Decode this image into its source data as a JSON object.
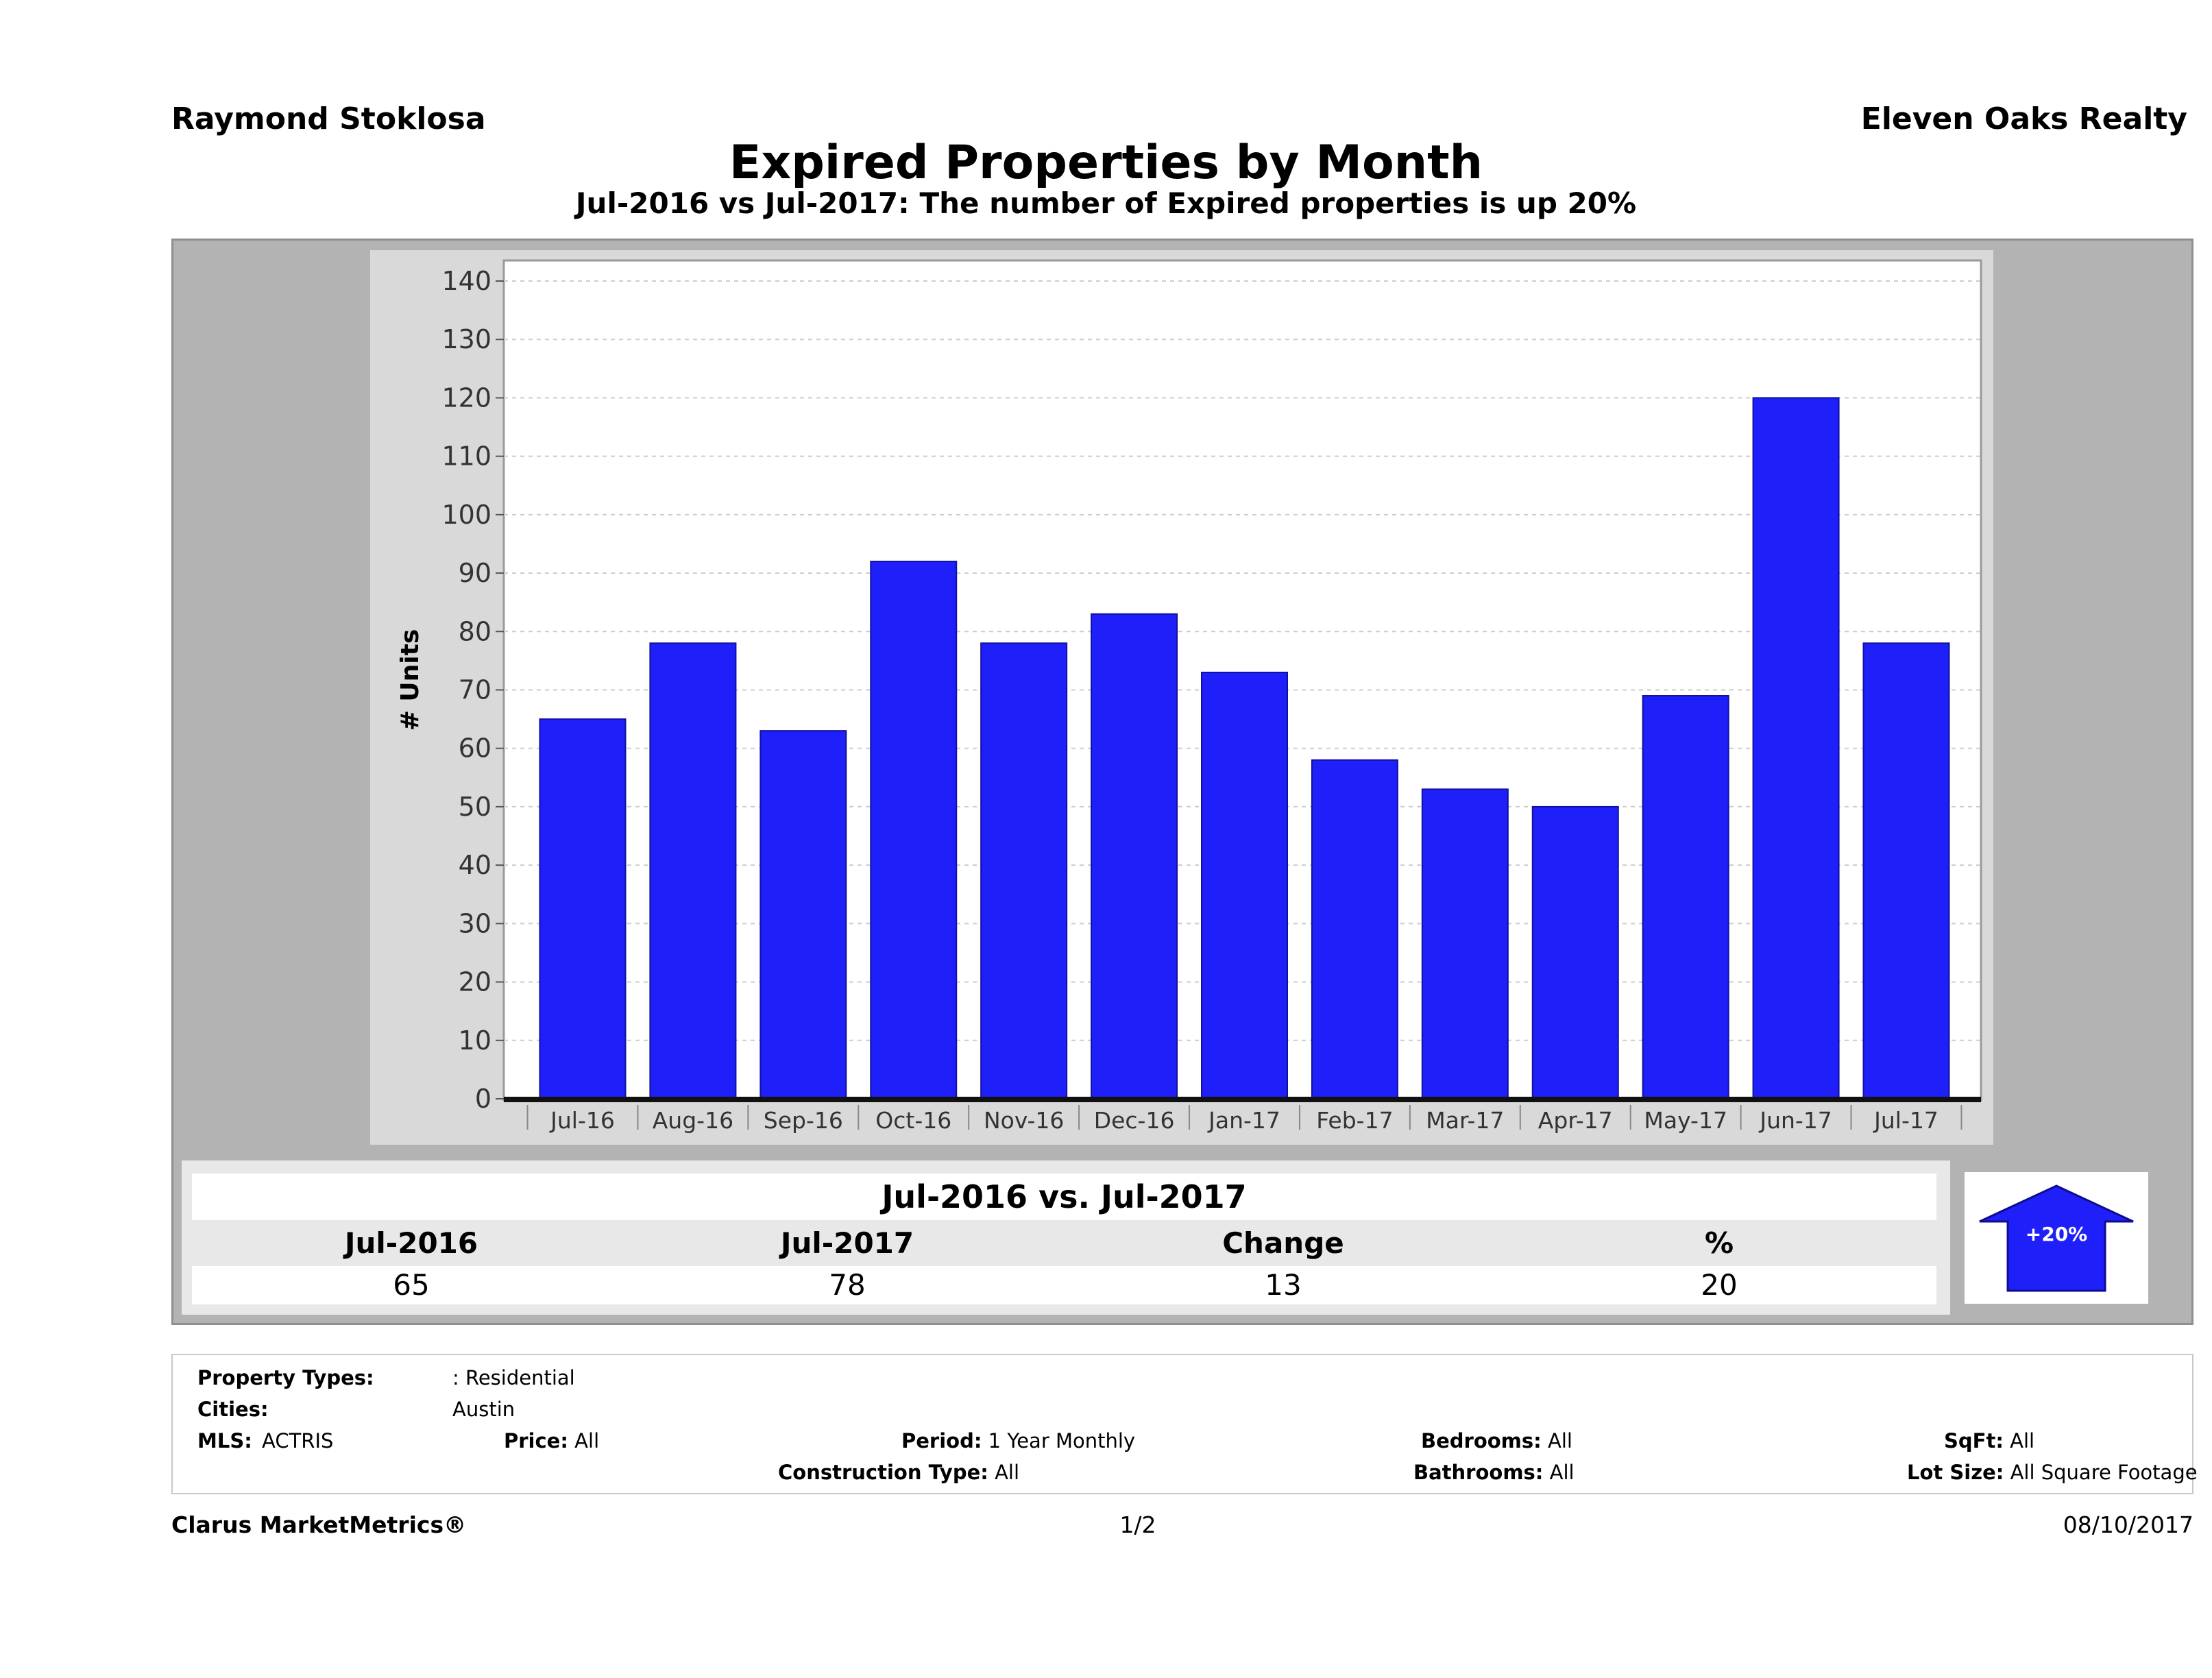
{
  "header": {
    "agent_name": "Raymond Stoklosa",
    "company": "Eleven Oaks Realty",
    "title": "Expired Properties by Month",
    "subtitle": "Jul-2016 vs Jul-2017: The number of Expired  properties is up 20%"
  },
  "colors": {
    "bar": "#1f1ffa",
    "panel": "#b3b3b3",
    "plot_panel": "#d9d9d9",
    "grid": "#cccccc"
  },
  "chart_data": {
    "type": "bar",
    "categories": [
      "Jul-16",
      "Aug-16",
      "Sep-16",
      "Oct-16",
      "Nov-16",
      "Dec-16",
      "Jan-17",
      "Feb-17",
      "Mar-17",
      "Apr-17",
      "May-17",
      "Jun-17",
      "Jul-17"
    ],
    "values": [
      65,
      78,
      63,
      92,
      78,
      83,
      73,
      58,
      53,
      50,
      69,
      120,
      78
    ],
    "title": "",
    "xlabel": "",
    "ylabel": "# Units",
    "ylim": [
      0,
      140
    ],
    "yticks": [
      0,
      10,
      20,
      30,
      40,
      50,
      60,
      70,
      80,
      90,
      100,
      110,
      120,
      130,
      140
    ],
    "grid": true,
    "legend": "none"
  },
  "comparison": {
    "title": "Jul-2016 vs. Jul-2017",
    "headers": [
      "Jul-2016",
      "Jul-2017",
      "Change",
      "%"
    ],
    "values": [
      "65",
      "78",
      "13",
      "20"
    ],
    "badge": "+20%",
    "badge_icon": "up-arrow-icon"
  },
  "criteria": {
    "property_types_label": "Property Types:",
    "property_types_value": ": Residential",
    "cities_label": "Cities:",
    "cities_value": "Austin",
    "mls_label": "MLS:",
    "mls_value": "ACTRIS",
    "price_label": "Price:",
    "price_value": "All",
    "period_label": "Period:",
    "period_value": "1 Year Monthly",
    "construction_label": "Construction Type:",
    "construction_value": "All",
    "bedrooms_label": "Bedrooms:",
    "bedrooms_value": "All",
    "bathrooms_label": "Bathrooms:",
    "bathrooms_value": "All",
    "sqft_label": "SqFt:",
    "sqft_value": "All",
    "lot_label": "Lot Size:",
    "lot_value": "All Square Footage"
  },
  "footer": {
    "brand": "Clarus MarketMetrics®",
    "page": "1/2",
    "date": "08/10/2017"
  }
}
